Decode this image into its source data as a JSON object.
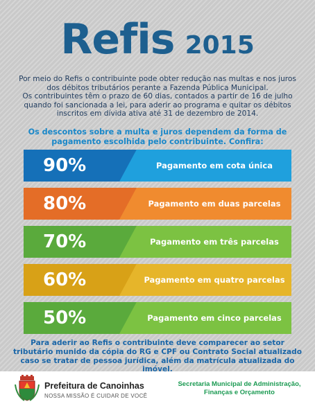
{
  "header": {
    "title": "Refis",
    "year": "2015"
  },
  "intro": {
    "paragraph1": "Por meio do Refis o contribuinte pode obter redução nas multas e nos juros dos débitos tributários perante a Fazenda Pública Municipal.",
    "paragraph2": "Os contribuintes têm o prazo de 60 dias, contados a partir de 16 de julho quando foi sancionada a lei, para aderir ao programa e quitar os débitos inscritos em dívida ativa até 31 de dezembro de 2014."
  },
  "lead": "Os descontos sobre a multa e juros dependem da forma de pagamento escolhida pelo contribuinte. Confira:",
  "discounts": [
    {
      "percent": "90%",
      "label": "Pagamento em cota única",
      "color_dark": "#1570b8",
      "color_light": "#1fa0dd"
    },
    {
      "percent": "80%",
      "label": "Pagamento em duas parcelas",
      "color_dark": "#e46d27",
      "color_light": "#f08b2f"
    },
    {
      "percent": "70%",
      "label": "Pagamento em três parcelas",
      "color_dark": "#5aaa3c",
      "color_light": "#7cc242"
    },
    {
      "percent": "60%",
      "label": "Pagamento em quatro parcelas",
      "color_dark": "#d8a117",
      "color_light": "#e6b52a"
    },
    {
      "percent": "50%",
      "label": "Pagamento em cinco parcelas",
      "color_dark": "#5aaa3c",
      "color_light": "#7cc242"
    }
  ],
  "closing": "Para aderir ao Refis o contribuinte deve comparecer ao setor tributário munido da cópia do RG e CPF ou Contrato Social atualizado caso se tratar de pessoa jurídica, além da matrícula atualizada do imóvel.",
  "footer": {
    "prefeitura_name": "Prefeitura de Canoinhas",
    "slogan": "NOSSA MISSÃO É CUIDAR DE VOCÊ",
    "secretaria": "Secretaria Municipal de Administração, Finanças e Orçamento"
  },
  "colors": {
    "title": "#1d5f8f",
    "lead": "#1a88c9",
    "secretaria": "#1b9a52"
  }
}
